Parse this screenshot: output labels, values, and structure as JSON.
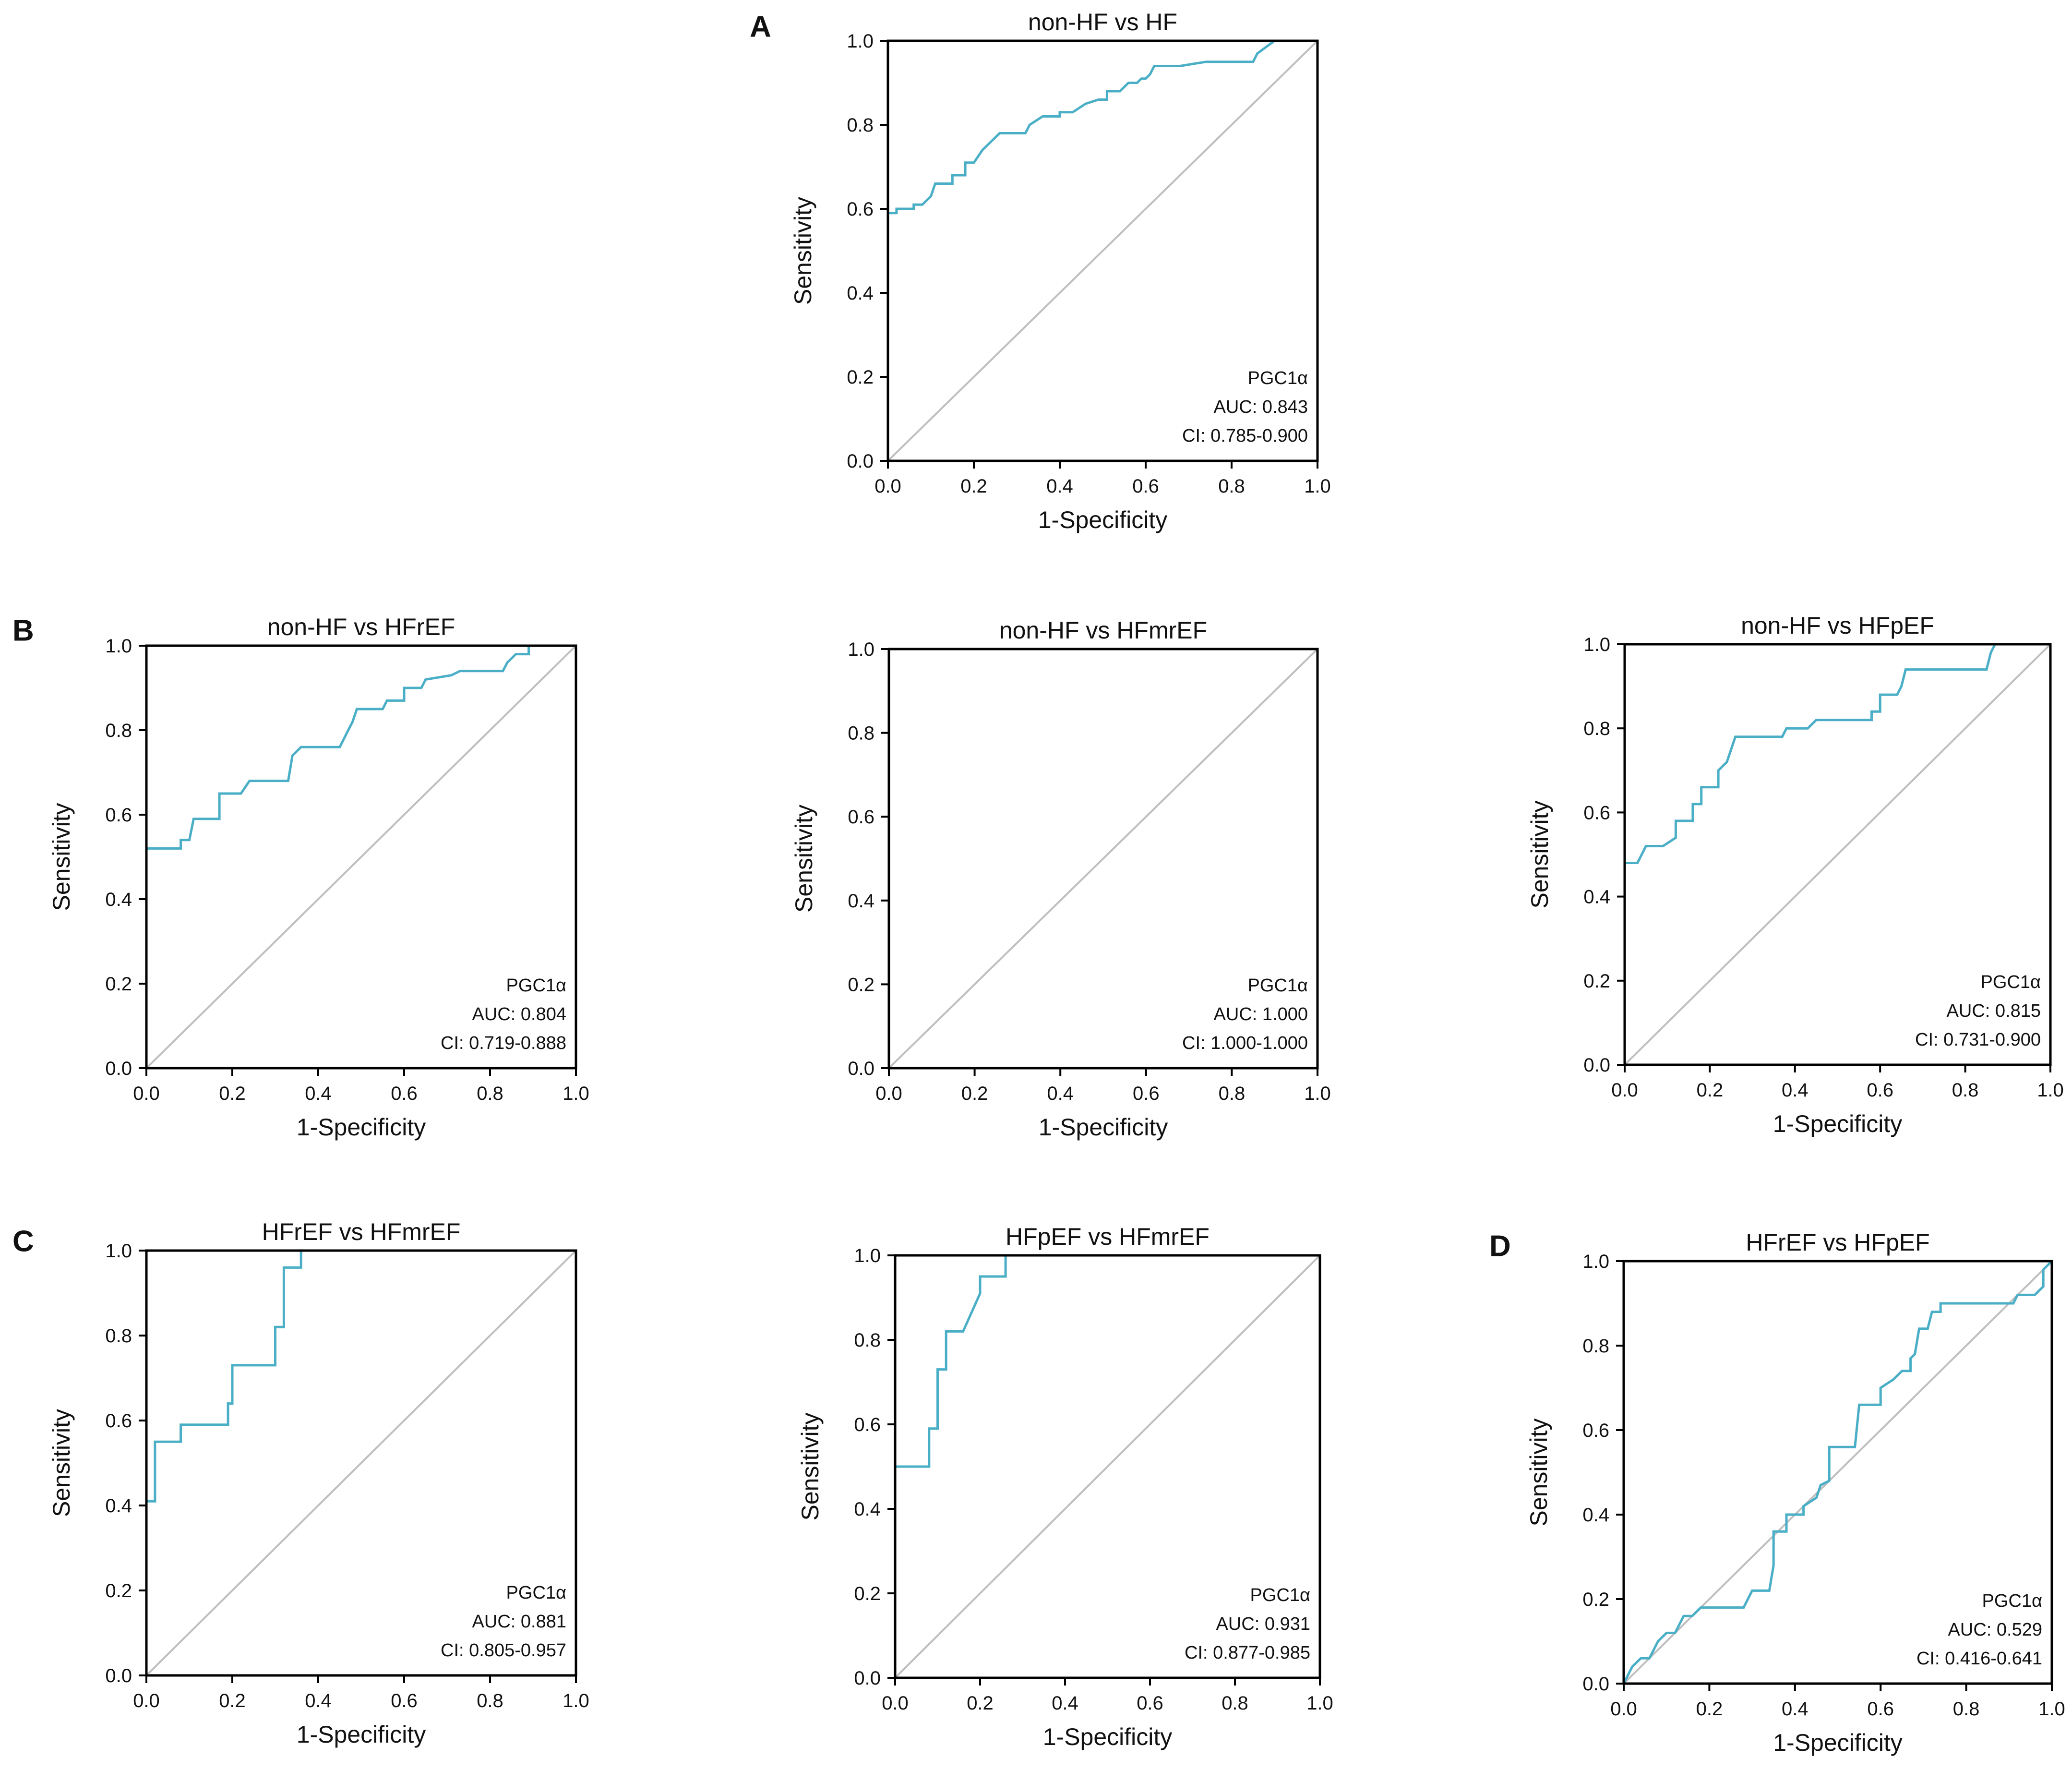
{
  "figure": {
    "panel_letters": [
      "A",
      "B",
      "C",
      "D"
    ],
    "line_color": "#4AAFC6",
    "diagonal_color": "#BFBFBF"
  },
  "chart_data": [
    {
      "type": "line",
      "panel": "A",
      "title": "non-HF vs HF",
      "xlabel": "1-Specificity",
      "ylabel": "Sensitivity",
      "xlim": [
        0,
        1
      ],
      "ylim": [
        0,
        1
      ],
      "ticks": [
        "0.0",
        "0.2",
        "0.4",
        "0.6",
        "0.8",
        "1.0"
      ],
      "marker": "PGC1α",
      "auc": "AUC: 0.843",
      "ci": "CI: 0.785-0.900",
      "roc": [
        [
          0,
          0
        ],
        [
          0,
          0.59
        ],
        [
          0.02,
          0.59
        ],
        [
          0.02,
          0.6
        ],
        [
          0.06,
          0.6
        ],
        [
          0.06,
          0.61
        ],
        [
          0.08,
          0.61
        ],
        [
          0.1,
          0.63
        ],
        [
          0.11,
          0.66
        ],
        [
          0.15,
          0.66
        ],
        [
          0.15,
          0.68
        ],
        [
          0.18,
          0.68
        ],
        [
          0.18,
          0.71
        ],
        [
          0.2,
          0.71
        ],
        [
          0.22,
          0.74
        ],
        [
          0.24,
          0.76
        ],
        [
          0.26,
          0.78
        ],
        [
          0.32,
          0.78
        ],
        [
          0.33,
          0.8
        ],
        [
          0.36,
          0.82
        ],
        [
          0.4,
          0.82
        ],
        [
          0.4,
          0.83
        ],
        [
          0.43,
          0.83
        ],
        [
          0.46,
          0.85
        ],
        [
          0.49,
          0.86
        ],
        [
          0.51,
          0.86
        ],
        [
          0.51,
          0.88
        ],
        [
          0.54,
          0.88
        ],
        [
          0.56,
          0.9
        ],
        [
          0.58,
          0.9
        ],
        [
          0.59,
          0.91
        ],
        [
          0.6,
          0.91
        ],
        [
          0.61,
          0.92
        ],
        [
          0.62,
          0.94
        ],
        [
          0.68,
          0.94
        ],
        [
          0.74,
          0.95
        ],
        [
          0.85,
          0.95
        ],
        [
          0.86,
          0.97
        ],
        [
          0.9,
          1
        ],
        [
          1,
          1
        ]
      ]
    },
    {
      "type": "line",
      "panel": "B",
      "title": "non-HF vs HFrEF",
      "xlabel": "1-Specificity",
      "ylabel": "Sensitivity",
      "xlim": [
        0,
        1
      ],
      "ylim": [
        0,
        1
      ],
      "ticks": [
        "0.0",
        "0.2",
        "0.4",
        "0.6",
        "0.8",
        "1.0"
      ],
      "marker": "PGC1α",
      "auc": "AUC: 0.804",
      "ci": "CI: 0.719-0.888",
      "roc": [
        [
          0,
          0
        ],
        [
          0,
          0.52
        ],
        [
          0.08,
          0.52
        ],
        [
          0.08,
          0.54
        ],
        [
          0.1,
          0.54
        ],
        [
          0.11,
          0.59
        ],
        [
          0.17,
          0.59
        ],
        [
          0.17,
          0.65
        ],
        [
          0.22,
          0.65
        ],
        [
          0.24,
          0.68
        ],
        [
          0.33,
          0.68
        ],
        [
          0.34,
          0.74
        ],
        [
          0.36,
          0.76
        ],
        [
          0.45,
          0.76
        ],
        [
          0.46,
          0.78
        ],
        [
          0.47,
          0.8
        ],
        [
          0.48,
          0.82
        ],
        [
          0.49,
          0.85
        ],
        [
          0.55,
          0.85
        ],
        [
          0.56,
          0.87
        ],
        [
          0.6,
          0.87
        ],
        [
          0.6,
          0.9
        ],
        [
          0.64,
          0.9
        ],
        [
          0.65,
          0.92
        ],
        [
          0.71,
          0.93
        ],
        [
          0.73,
          0.94
        ],
        [
          0.83,
          0.94
        ],
        [
          0.84,
          0.96
        ],
        [
          0.86,
          0.98
        ],
        [
          0.89,
          0.98
        ],
        [
          0.89,
          1
        ],
        [
          1,
          1
        ]
      ]
    },
    {
      "type": "line",
      "panel": "",
      "title": "non-HF vs HFmrEF",
      "xlabel": "1-Specificity",
      "ylabel": "Sensitivity",
      "xlim": [
        0,
        1
      ],
      "ylim": [
        0,
        1
      ],
      "ticks": [
        "0.0",
        "0.2",
        "0.4",
        "0.6",
        "0.8",
        "1.0"
      ],
      "marker": "PGC1α",
      "auc": "AUC: 1.000",
      "ci": "CI: 1.000-1.000",
      "roc": [
        [
          0,
          0
        ],
        [
          0,
          1
        ],
        [
          1,
          1
        ]
      ]
    },
    {
      "type": "line",
      "panel": "",
      "title": "non-HF vs HFpEF",
      "xlabel": "1-Specificity",
      "ylabel": "Sensitivity",
      "xlim": [
        0,
        1
      ],
      "ylim": [
        0,
        1
      ],
      "ticks": [
        "0.0",
        "0.2",
        "0.4",
        "0.6",
        "0.8",
        "1.0"
      ],
      "marker": "PGC1α",
      "auc": "AUC: 0.815",
      "ci": "CI: 0.731-0.900",
      "roc": [
        [
          0,
          0
        ],
        [
          0,
          0.48
        ],
        [
          0.03,
          0.48
        ],
        [
          0.05,
          0.52
        ],
        [
          0.09,
          0.52
        ],
        [
          0.12,
          0.54
        ],
        [
          0.12,
          0.58
        ],
        [
          0.16,
          0.58
        ],
        [
          0.16,
          0.62
        ],
        [
          0.18,
          0.62
        ],
        [
          0.18,
          0.66
        ],
        [
          0.22,
          0.66
        ],
        [
          0.22,
          0.7
        ],
        [
          0.24,
          0.72
        ],
        [
          0.26,
          0.78
        ],
        [
          0.37,
          0.78
        ],
        [
          0.38,
          0.8
        ],
        [
          0.43,
          0.8
        ],
        [
          0.45,
          0.82
        ],
        [
          0.58,
          0.82
        ],
        [
          0.58,
          0.84
        ],
        [
          0.6,
          0.84
        ],
        [
          0.6,
          0.88
        ],
        [
          0.64,
          0.88
        ],
        [
          0.65,
          0.9
        ],
        [
          0.66,
          0.94
        ],
        [
          0.85,
          0.94
        ],
        [
          0.86,
          0.98
        ],
        [
          0.87,
          1
        ],
        [
          1,
          1
        ]
      ]
    },
    {
      "type": "line",
      "panel": "C",
      "title": "HFrEF vs HFmrEF",
      "xlabel": "1-Specificity",
      "ylabel": "Sensitivity",
      "xlim": [
        0,
        1
      ],
      "ylim": [
        0,
        1
      ],
      "ticks": [
        "0.0",
        "0.2",
        "0.4",
        "0.6",
        "0.8",
        "1.0"
      ],
      "marker": "PGC1α",
      "auc": "AUC: 0.881",
      "ci": "CI: 0.805-0.957",
      "roc": [
        [
          0,
          0
        ],
        [
          0,
          0.41
        ],
        [
          0.02,
          0.41
        ],
        [
          0.02,
          0.55
        ],
        [
          0.08,
          0.55
        ],
        [
          0.08,
          0.59
        ],
        [
          0.19,
          0.59
        ],
        [
          0.19,
          0.64
        ],
        [
          0.2,
          0.64
        ],
        [
          0.2,
          0.73
        ],
        [
          0.3,
          0.73
        ],
        [
          0.3,
          0.82
        ],
        [
          0.32,
          0.82
        ],
        [
          0.32,
          0.96
        ],
        [
          0.36,
          0.96
        ],
        [
          0.36,
          1
        ],
        [
          1,
          1
        ]
      ]
    },
    {
      "type": "line",
      "panel": "",
      "title": "HFpEF vs HFmrEF",
      "xlabel": "1-Specificity",
      "ylabel": "Sensitivity",
      "xlim": [
        0,
        1
      ],
      "ylim": [
        0,
        1
      ],
      "ticks": [
        "0.0",
        "0.2",
        "0.4",
        "0.6",
        "0.8",
        "1.0"
      ],
      "marker": "PGC1α",
      "auc": "AUC: 0.931",
      "ci": "CI: 0.877-0.985",
      "roc": [
        [
          0,
          0
        ],
        [
          0,
          0.5
        ],
        [
          0.08,
          0.5
        ],
        [
          0.08,
          0.59
        ],
        [
          0.1,
          0.59
        ],
        [
          0.1,
          0.73
        ],
        [
          0.12,
          0.73
        ],
        [
          0.12,
          0.82
        ],
        [
          0.16,
          0.82
        ],
        [
          0.2,
          0.91
        ],
        [
          0.2,
          0.95
        ],
        [
          0.26,
          0.95
        ],
        [
          0.26,
          1
        ],
        [
          1,
          1
        ]
      ]
    },
    {
      "type": "line",
      "panel": "D",
      "title": "HFrEF vs HFpEF",
      "xlabel": "1-Specificity",
      "ylabel": "Sensitivity",
      "xlim": [
        0,
        1
      ],
      "ylim": [
        0,
        1
      ],
      "ticks": [
        "0.0",
        "0.2",
        "0.4",
        "0.6",
        "0.8",
        "1.0"
      ],
      "marker": "PGC1α",
      "auc": "AUC: 0.529",
      "ci": "CI: 0.416-0.641",
      "roc": [
        [
          0,
          0
        ],
        [
          0.02,
          0.04
        ],
        [
          0.04,
          0.06
        ],
        [
          0.06,
          0.06
        ],
        [
          0.08,
          0.1
        ],
        [
          0.1,
          0.12
        ],
        [
          0.12,
          0.12
        ],
        [
          0.14,
          0.16
        ],
        [
          0.16,
          0.16
        ],
        [
          0.18,
          0.18
        ],
        [
          0.28,
          0.18
        ],
        [
          0.3,
          0.22
        ],
        [
          0.34,
          0.22
        ],
        [
          0.35,
          0.28
        ],
        [
          0.35,
          0.36
        ],
        [
          0.38,
          0.36
        ],
        [
          0.38,
          0.4
        ],
        [
          0.42,
          0.4
        ],
        [
          0.42,
          0.42
        ],
        [
          0.45,
          0.44
        ],
        [
          0.46,
          0.47
        ],
        [
          0.48,
          0.48
        ],
        [
          0.48,
          0.56
        ],
        [
          0.54,
          0.56
        ],
        [
          0.55,
          0.66
        ],
        [
          0.6,
          0.66
        ],
        [
          0.6,
          0.7
        ],
        [
          0.63,
          0.72
        ],
        [
          0.65,
          0.74
        ],
        [
          0.67,
          0.74
        ],
        [
          0.67,
          0.77
        ],
        [
          0.68,
          0.78
        ],
        [
          0.69,
          0.84
        ],
        [
          0.71,
          0.84
        ],
        [
          0.72,
          0.88
        ],
        [
          0.74,
          0.88
        ],
        [
          0.74,
          0.9
        ],
        [
          0.91,
          0.9
        ],
        [
          0.92,
          0.92
        ],
        [
          0.96,
          0.92
        ],
        [
          0.98,
          0.94
        ],
        [
          0.98,
          0.98
        ],
        [
          1,
          1
        ]
      ]
    }
  ]
}
